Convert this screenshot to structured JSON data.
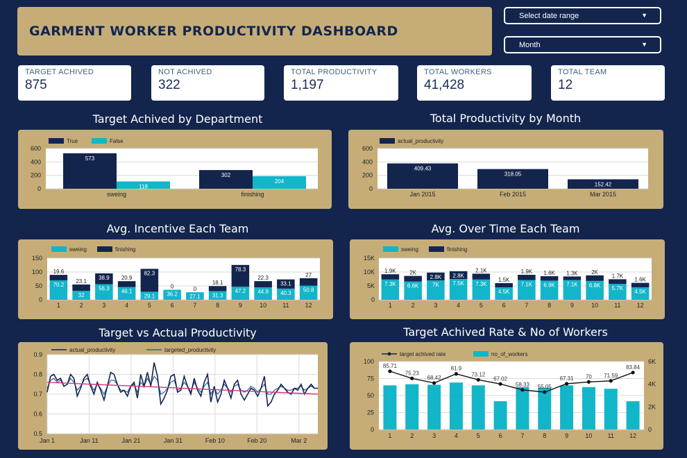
{
  "header": {
    "title": "GARMENT WORKER PRODUCTIVITY DASHBOARD"
  },
  "controls": {
    "date_range_label": "Select date range",
    "period_label": "Month"
  },
  "kpis": [
    {
      "label": "TARGET ACHIVED",
      "value": "875"
    },
    {
      "label": "NOT ACHIVED",
      "value": "322"
    },
    {
      "label": "TOTAL PRODUCTIVITY",
      "value": "1,197"
    },
    {
      "label": "TOTAL WORKERS",
      "value": "41,428"
    },
    {
      "label": "TOTAL TEAM",
      "value": "12"
    }
  ],
  "sections": {
    "dept": "Target Achived by Department",
    "month": "Total Productivity by Month",
    "incentive": "Avg. Incentive Each Team",
    "overtime": "Avg. Over Time Each Team",
    "tva": "Target vs Actual Productivity",
    "rate": "Target Achived Rate & No of Workers"
  },
  "colors": {
    "navy": "#13254d",
    "teal": "#13b5c9",
    "gold": "#c6ad78",
    "line_pink": "#d6357a",
    "line_blue": "#2f5fa8"
  },
  "chart_data": [
    {
      "id": "dept",
      "type": "bar",
      "categories": [
        "sweing",
        "finishing"
      ],
      "series": [
        {
          "name": "True",
          "values": [
            573,
            302
          ],
          "labels": [
            "573",
            "302"
          ]
        },
        {
          "name": "False",
          "values": [
            118,
            204
          ],
          "labels": [
            "118",
            "204"
          ]
        }
      ],
      "yticks": [
        "0",
        "200",
        "400",
        "600"
      ],
      "ylim": [
        0,
        650
      ],
      "grid": true,
      "legend": "top-left"
    },
    {
      "id": "month",
      "type": "bar",
      "categories": [
        "Jan 2015",
        "Feb 2015",
        "Mar 2015"
      ],
      "series": [
        {
          "name": "actual_productivity",
          "values": [
            409.43,
            318.05,
            152.42
          ],
          "labels": [
            "409.43",
            "318.05",
            "152.42"
          ]
        }
      ],
      "yticks": [
        "0",
        "200",
        "400",
        "600"
      ],
      "ylim": [
        0,
        650
      ],
      "grid": true,
      "legend": "top-left"
    },
    {
      "id": "incentive",
      "type": "bar",
      "categories": [
        "1",
        "2",
        "3",
        "4",
        "5",
        "6",
        "7",
        "8",
        "9",
        "10",
        "11",
        "12"
      ],
      "series": [
        {
          "name": "sweing",
          "values": [
            70.2,
            32,
            56.3,
            46.1,
            29.1,
            36.2,
            27.1,
            31.3,
            47.2,
            44.9,
            40.3,
            50.8
          ],
          "labels": [
            "70.2",
            "32",
            "56.3",
            "46.1",
            "29.1",
            "36.2",
            "27.1",
            "31.3",
            "47.2",
            "44.9",
            "40.3",
            "50.8"
          ]
        },
        {
          "name": "finishing",
          "values": [
            19.6,
            23.1,
            38.9,
            20.9,
            82.3,
            0,
            0,
            18.1,
            78.3,
            22.3,
            33.1,
            27
          ],
          "labels": [
            "19.6",
            "23.1",
            "38.9",
            "20.9",
            "82.3",
            "0",
            "0",
            "18.1",
            "78.3",
            "22.3",
            "33.1",
            "27"
          ]
        }
      ],
      "yticks": [
        "0",
        "50",
        "100",
        "150"
      ],
      "ylim": [
        0,
        150
      ],
      "grid": true,
      "legend": "top-left"
    },
    {
      "id": "overtime",
      "type": "bar",
      "categories": [
        "1",
        "2",
        "3",
        "4",
        "5",
        "6",
        "7",
        "8",
        "9",
        "10",
        "11",
        "12"
      ],
      "series": [
        {
          "name": "sweing",
          "values": [
            7300,
            6600,
            7000,
            7500,
            7300,
            4500,
            7100,
            6900,
            7100,
            6800,
            5700,
            4500
          ],
          "labels": [
            "7.3K",
            "6.6K",
            "7K",
            "7.5K",
            "7.3K",
            "4.5K",
            "7.1K",
            "6.9K",
            "7.1K",
            "6.8K",
            "5.7K",
            "4.5K"
          ]
        },
        {
          "name": "finishing",
          "values": [
            1900,
            2000,
            2800,
            2800,
            2100,
            1500,
            1900,
            1600,
            1300,
            2000,
            1700,
            1600
          ],
          "labels": [
            "1.9K",
            "2K",
            "2.8K",
            "2.8K",
            "2.1K",
            "1.5K",
            "1.9K",
            "1.6K",
            "1.3K",
            "2K",
            "1.7K",
            "1.6K"
          ]
        }
      ],
      "yticks": [
        "0",
        "5K",
        "10K",
        "15K"
      ],
      "ylim": [
        0,
        15000
      ],
      "grid": true,
      "legend": "top-left"
    },
    {
      "id": "tva",
      "type": "line",
      "xticks": [
        "Jan 1",
        "Jan 11",
        "Jan 21",
        "Jan 31",
        "Feb 10",
        "Feb 20",
        "Mar 2"
      ],
      "yticks": [
        "0.5",
        "0.6",
        "0.7",
        "0.8",
        "0.9"
      ],
      "ylim": [
        0.5,
        0.9
      ],
      "series": [
        {
          "name": "actual_productivity",
          "values": [
            0.71,
            0.79,
            0.8,
            0.77,
            0.78,
            0.74,
            0.75,
            0.8,
            0.78,
            0.69,
            0.73,
            0.78,
            0.8,
            0.74,
            0.7,
            0.76,
            0.72,
            0.67,
            0.74,
            0.81,
            0.8,
            0.75,
            0.71,
            0.72,
            0.69,
            0.74,
            0.76,
            0.68,
            0.8,
            0.74,
            0.81,
            0.74,
            0.86,
            0.79,
            0.65,
            0.68,
            0.72,
            0.79,
            0.8,
            0.71,
            0.72,
            0.79,
            0.74,
            0.7,
            0.78,
            0.72,
            0.69,
            0.76,
            0.8,
            0.66,
            0.74,
            0.66,
            0.7,
            0.77,
            0.73,
            0.68,
            0.75,
            0.77,
            0.7,
            0.67,
            0.7,
            0.73,
            0.72,
            0.69,
            0.73,
            0.79,
            0.64,
            0.66,
            0.7,
            0.72,
            0.75,
            0.73,
            0.71,
            0.7,
            0.73,
            0.72,
            0.75,
            0.7,
            0.73,
            0.75,
            0.73,
            0.73
          ]
        },
        {
          "name": "targeted_productivity",
          "values": [
            0.73,
            0.77,
            0.78,
            0.76,
            0.77,
            0.74,
            0.75,
            0.78,
            0.76,
            0.72,
            0.74,
            0.77,
            0.78,
            0.75,
            0.72,
            0.75,
            0.73,
            0.7,
            0.74,
            0.77,
            0.77,
            0.75,
            0.72,
            0.72,
            0.71,
            0.74,
            0.75,
            0.71,
            0.76,
            0.74,
            0.78,
            0.75,
            0.79,
            0.77,
            0.7,
            0.71,
            0.73,
            0.76,
            0.77,
            0.72,
            0.73,
            0.76,
            0.74,
            0.71,
            0.76,
            0.73,
            0.71,
            0.74,
            0.76,
            0.7,
            0.73,
            0.7,
            0.72,
            0.75,
            0.73,
            0.71,
            0.74,
            0.75,
            0.72,
            0.71,
            0.72,
            0.74,
            0.73,
            0.71,
            0.73,
            0.75,
            0.7,
            0.7,
            0.72,
            0.73,
            0.74,
            0.73,
            0.72,
            0.72,
            0.73,
            0.73,
            0.74,
            0.72,
            0.73,
            0.74,
            0.73,
            0.73
          ]
        },
        {
          "name": "trend",
          "values": [
            0.76,
            0.7
          ]
        }
      ],
      "grid": true,
      "legend": "top-left"
    },
    {
      "id": "rate",
      "type": "bar",
      "categories": [
        "1",
        "2",
        "3",
        "4",
        "5",
        "6",
        "7",
        "8",
        "9",
        "10",
        "11",
        "12"
      ],
      "series": [
        {
          "name": "no_of_workers",
          "axis": "right",
          "values": [
            3900,
            4000,
            3950,
            4150,
            3900,
            2500,
            3750,
            3700,
            3900,
            3750,
            3600,
            2500
          ]
        },
        {
          "name": "target achived rate",
          "axis": "left",
          "values": [
            85.71,
            75.23,
            68.42,
            81.9,
            73.12,
            67.02,
            58.33,
            55.05,
            67.31,
            70,
            71.59,
            83.84
          ],
          "labels": [
            "85.71",
            "75.23",
            "68.42",
            "81.9",
            "73.12",
            "67.02",
            "58.33",
            "55.05",
            "67.31",
            "70",
            "71.59",
            "83.84"
          ]
        }
      ],
      "yticks": [
        "0",
        "25",
        "50",
        "75",
        "100"
      ],
      "ylim": [
        0,
        100
      ],
      "y2ticks": [
        "0",
        "2K",
        "4K",
        "6K"
      ],
      "y2lim": [
        0,
        6000
      ],
      "grid": true,
      "legend": "top-left"
    }
  ]
}
